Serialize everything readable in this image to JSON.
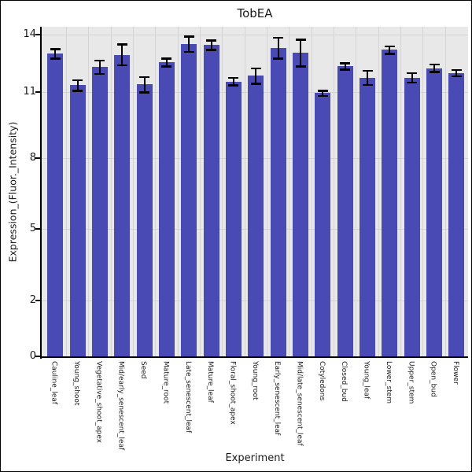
{
  "chart_data": {
    "type": "bar",
    "title": "TobEA",
    "xlabel": "Experiment",
    "ylabel": "Expression_(Fluor._Intensity)",
    "categories": [
      "Cauline_leaf",
      "Young_shoot",
      "Vegetative_shoot_apex",
      "Mid/early_senescent_leaf",
      "Seed",
      "Mature_root",
      "Late_senescent_leaf",
      "Mature_leaf",
      "Floral_shoot_apex",
      "Young_root",
      "Early_senescent_leaf",
      "Mid/late_senescent_leaf",
      "Cotyledons",
      "Closed_bud",
      "Young_leaf",
      "Lower_stem",
      "Upper_stem",
      "Open_bud",
      "Flower"
    ],
    "values": [
      13.0,
      11.35,
      12.3,
      12.95,
      11.4,
      12.55,
      13.5,
      13.45,
      11.55,
      11.85,
      13.3,
      13.05,
      10.95,
      12.35,
      11.75,
      13.2,
      11.75,
      12.25,
      12.0
    ],
    "errors": [
      0.25,
      0.27,
      0.35,
      0.55,
      0.4,
      0.2,
      0.4,
      0.25,
      0.2,
      0.4,
      0.55,
      0.7,
      0.12,
      0.17,
      0.38,
      0.2,
      0.25,
      0.2,
      0.16
    ],
    "yticks": [
      0,
      2,
      5,
      8,
      11,
      14
    ],
    "ylim": [
      0,
      14.4
    ],
    "grid": true,
    "legend": "none",
    "error_bars": "symmetric",
    "colors": {
      "bar": "#4a4ab5",
      "plot_bg": "#e8e8e8",
      "gridline": "#d4d4d4",
      "error_bar": "#000000",
      "text": "#1a1a1a",
      "figure_bg": "#ffffff"
    }
  }
}
